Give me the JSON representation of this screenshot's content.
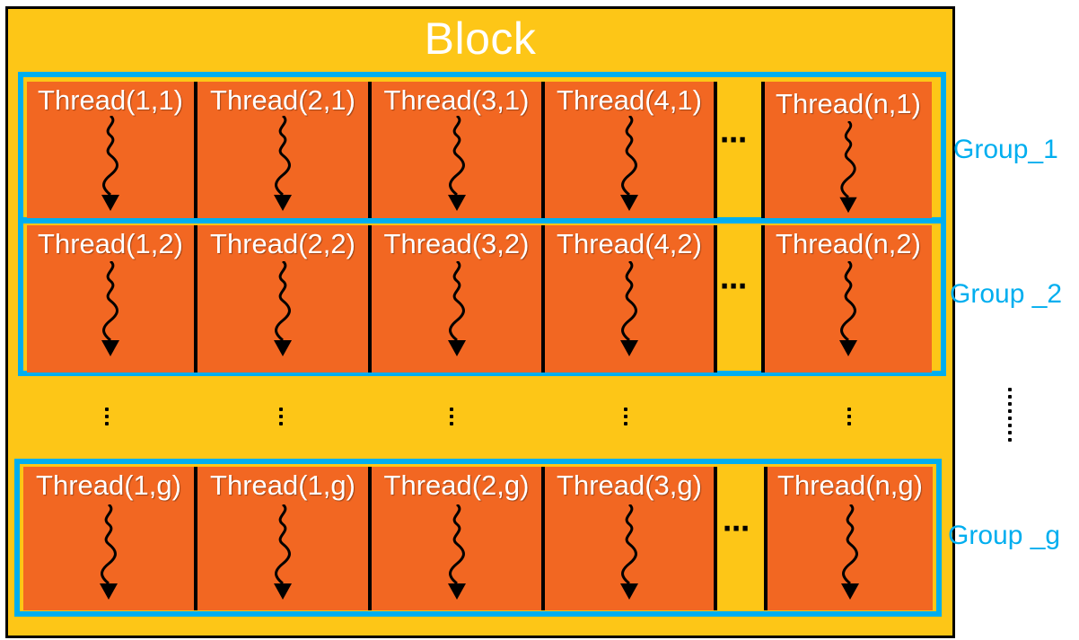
{
  "block": {
    "title": "Block"
  },
  "groups": [
    {
      "label": "Group_1",
      "threads": [
        "Thread(1,1)",
        "Thread(2,1)",
        "Thread(3,1)",
        "Thread(4,1)",
        "Thread(n,1)"
      ]
    },
    {
      "label": "Group _2",
      "threads": [
        "Thread(1,2)",
        "Thread(2,2)",
        "Thread(3,2)",
        "Thread(4,2)",
        "Thread(n,2)"
      ]
    },
    {
      "label": "Group _g",
      "threads": [
        "Thread(1,g)",
        "Thread(1,g)",
        "Thread(2,g)",
        "Thread(3,g)",
        "Thread(n,g)"
      ]
    }
  ],
  "ellipsis_glyph": "⋯",
  "colors": {
    "block": "#fdc617",
    "thread": "#f26722",
    "group_border": "#00aeef",
    "label_text": "#ffffff"
  },
  "icons": {
    "thread_arrow": "wavy-down-arrow-icon"
  }
}
